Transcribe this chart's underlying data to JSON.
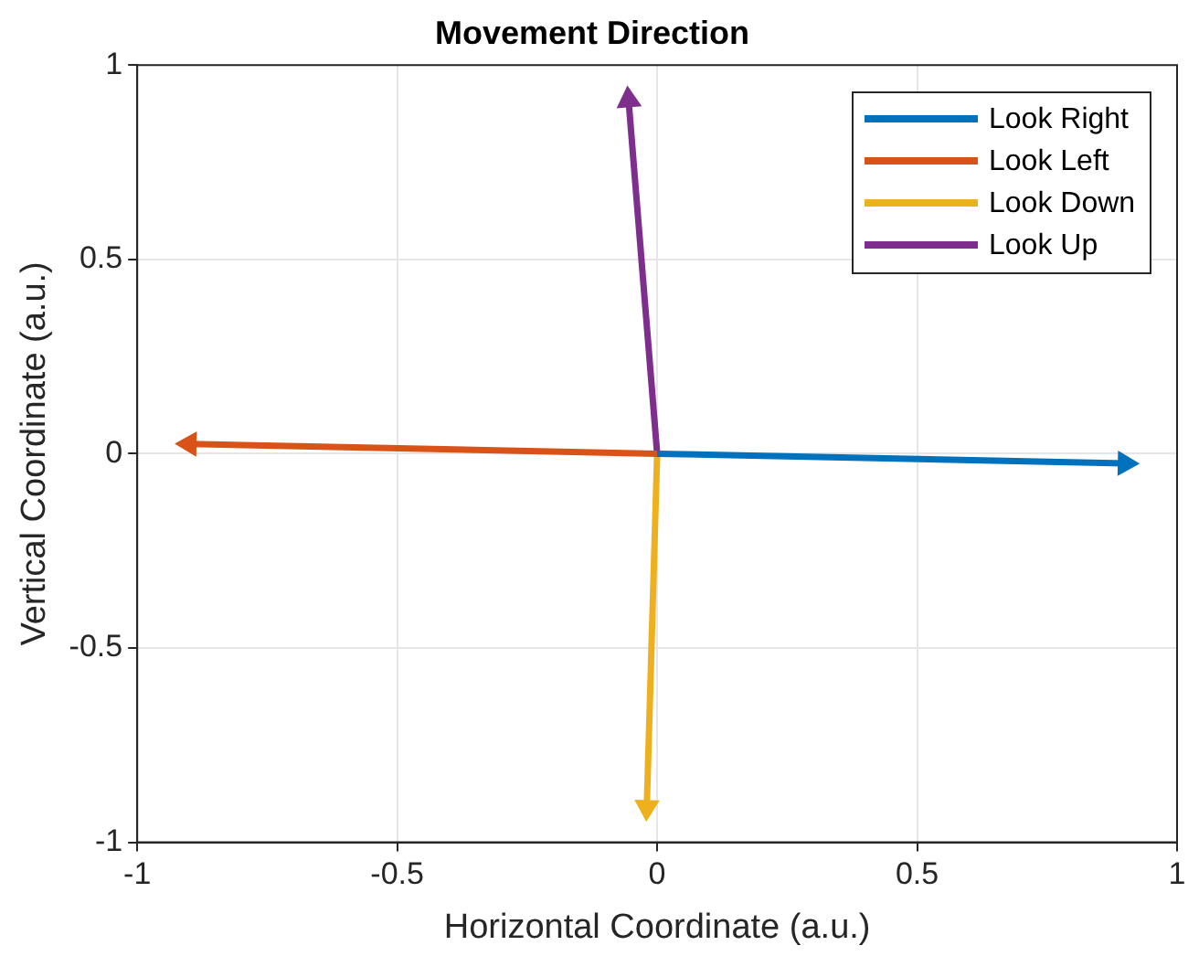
{
  "chart_data": {
    "type": "line",
    "title": "Movement Direction",
    "xlabel": "Horizontal Coordinate (a.u.)",
    "ylabel": "Vertical Coordinate (a.u.)",
    "xlim": [
      -1,
      1
    ],
    "xticks": [
      -1,
      -0.5,
      0,
      0.5,
      1
    ],
    "ylim": [
      -1,
      1
    ],
    "yticks": [
      -1,
      -0.5,
      0,
      0.5,
      1
    ],
    "grid": true,
    "legend": "top right",
    "series": [
      {
        "name": "Look Right",
        "color": "#0072bd",
        "x": [
          0,
          0.9
        ],
        "values": [
          0,
          -0.025
        ]
      },
      {
        "name": "Look Left",
        "color": "#d95319",
        "x": [
          0,
          -0.9
        ],
        "values": [
          0,
          0.025
        ]
      },
      {
        "name": "Look Down",
        "color": "#edb120",
        "x": [
          0,
          -0.02
        ],
        "values": [
          0,
          -0.91
        ]
      },
      {
        "name": "Look Up",
        "color": "#7e2f8e",
        "x": [
          0,
          -0.055
        ],
        "values": [
          0,
          0.91
        ]
      }
    ]
  }
}
